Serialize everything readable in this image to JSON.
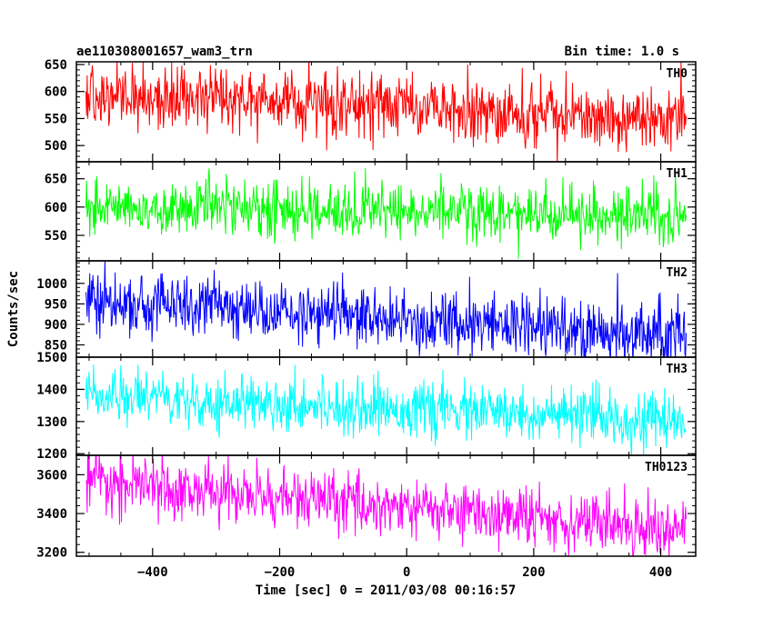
{
  "header": {
    "title": "ae110308001657_wam3_trn",
    "bin_time": "Bin time: 1.0 s"
  },
  "chart_data": {
    "type": "line",
    "xlabel": "Time [sec] 0 = 2011/03/08 00:16:57",
    "ylabel": "Counts/sec",
    "xlim": [
      -520,
      455
    ],
    "x_ticks": [
      -400,
      -200,
      0,
      200,
      400
    ],
    "x_tick_labels": [
      "−400",
      "−200",
      "0",
      "200",
      "400"
    ],
    "x_range": [
      -505,
      440
    ],
    "bin_time_s": 1.0,
    "panels": [
      {
        "name": "TH0",
        "color": "#ff0000",
        "ylim": [
          470,
          655
        ],
        "y_ticks": [
          500,
          550,
          600,
          650
        ],
        "trend": [
          [
            -505,
            595
          ],
          [
            440,
            548
          ]
        ],
        "noise_sd": 30
      },
      {
        "name": "TH1",
        "color": "#00ff00",
        "ylim": [
          505,
          680
        ],
        "y_ticks": [
          550,
          600,
          650
        ],
        "trend": [
          [
            -505,
            600
          ],
          [
            440,
            585
          ]
        ],
        "noise_sd": 25
      },
      {
        "name": "TH2",
        "color": "#0000ff",
        "ylim": [
          820,
          1055
        ],
        "y_ticks": [
          850,
          900,
          950,
          1000
        ],
        "trend": [
          [
            -505,
            960
          ],
          [
            440,
            868
          ]
        ],
        "noise_sd": 38
      },
      {
        "name": "TH3",
        "color": "#00ffff",
        "ylim": [
          1195,
          1500
        ],
        "y_ticks": [
          1200,
          1300,
          1400,
          1500
        ],
        "trend": [
          [
            -505,
            1385
          ],
          [
            440,
            1300
          ]
        ],
        "noise_sd": 42
      },
      {
        "name": "TH0123",
        "color": "#ff00ff",
        "ylim": [
          3180,
          3700
        ],
        "y_ticks": [
          3200,
          3400,
          3600
        ],
        "trend": [
          [
            -505,
            3560
          ],
          [
            440,
            3320
          ]
        ],
        "noise_sd": 75
      }
    ]
  }
}
